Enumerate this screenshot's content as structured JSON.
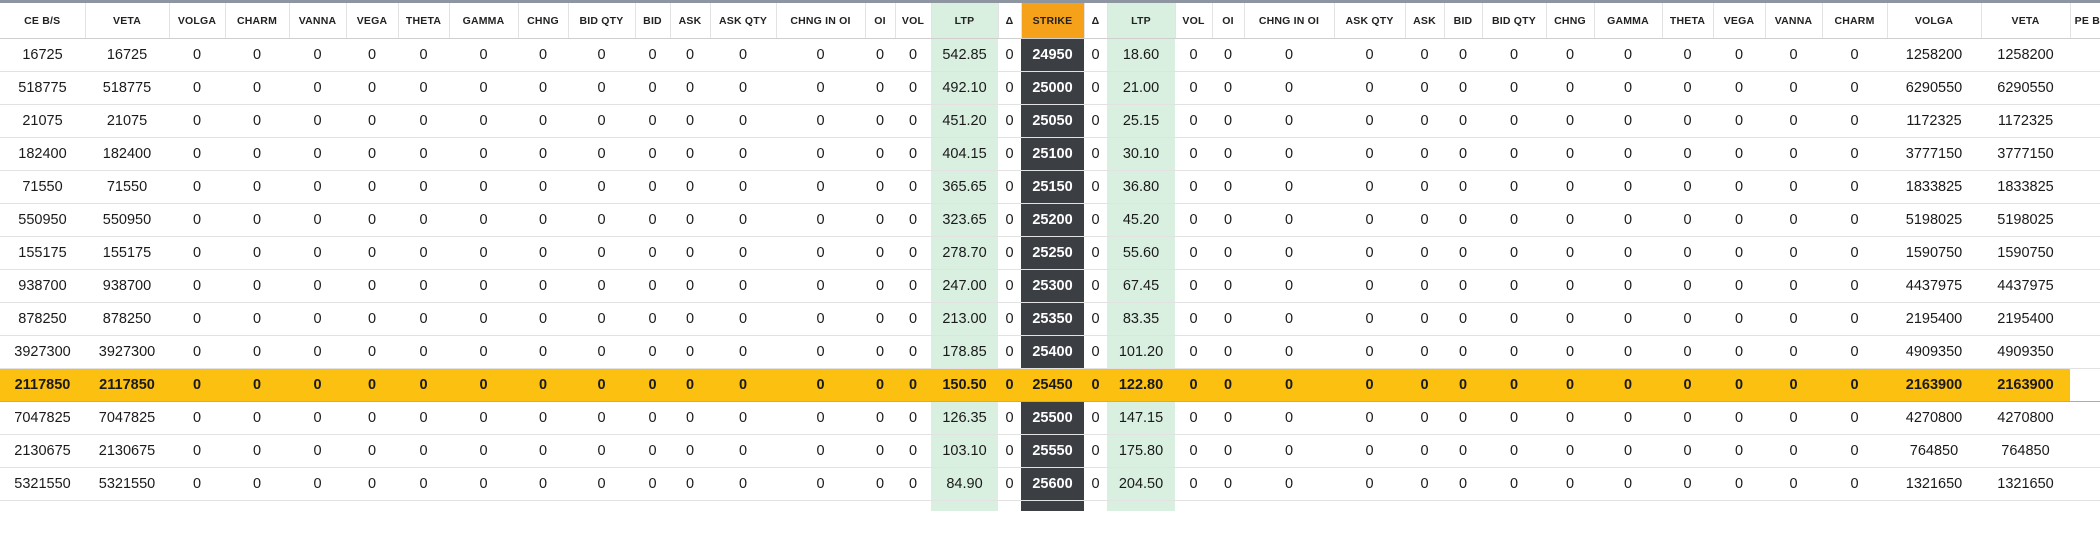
{
  "columns": [
    "CE B/S",
    "VETA",
    "VOLGA",
    "CHARM",
    "VANNA",
    "VEGA",
    "THETA",
    "GAMMA",
    "CHNG",
    "BID QTY",
    "BID",
    "ASK",
    "ASK QTY",
    "CHNG IN OI",
    "OI",
    "VOL",
    "LTP",
    "Δ",
    "STRIKE",
    "Δ",
    "LTP",
    "VOL",
    "OI",
    "CHNG IN OI",
    "ASK QTY",
    "ASK",
    "BID",
    "BID QTY",
    "CHNG",
    "GAMMA",
    "THETA",
    "VEGA",
    "VANNA",
    "CHARM",
    "VOLGA",
    "VETA",
    "PE B/S"
  ],
  "atm_strike": "25450",
  "rows": [
    [
      "16725",
      "16725",
      "0",
      "0",
      "0",
      "0",
      "0",
      "0",
      "0",
      "0",
      "0",
      "0",
      "0",
      "0",
      "0",
      "0",
      "542.85",
      "0",
      "24950",
      "0",
      "18.60",
      "0",
      "0",
      "0",
      "0",
      "0",
      "0",
      "0",
      "0",
      "0",
      "0",
      "0",
      "0",
      "0",
      "1258200",
      "1258200",
      ""
    ],
    [
      "518775",
      "518775",
      "0",
      "0",
      "0",
      "0",
      "0",
      "0",
      "0",
      "0",
      "0",
      "0",
      "0",
      "0",
      "0",
      "0",
      "492.10",
      "0",
      "25000",
      "0",
      "21.00",
      "0",
      "0",
      "0",
      "0",
      "0",
      "0",
      "0",
      "0",
      "0",
      "0",
      "0",
      "0",
      "0",
      "6290550",
      "6290550",
      ""
    ],
    [
      "21075",
      "21075",
      "0",
      "0",
      "0",
      "0",
      "0",
      "0",
      "0",
      "0",
      "0",
      "0",
      "0",
      "0",
      "0",
      "0",
      "451.20",
      "0",
      "25050",
      "0",
      "25.15",
      "0",
      "0",
      "0",
      "0",
      "0",
      "0",
      "0",
      "0",
      "0",
      "0",
      "0",
      "0",
      "0",
      "1172325",
      "1172325",
      ""
    ],
    [
      "182400",
      "182400",
      "0",
      "0",
      "0",
      "0",
      "0",
      "0",
      "0",
      "0",
      "0",
      "0",
      "0",
      "0",
      "0",
      "0",
      "404.15",
      "0",
      "25100",
      "0",
      "30.10",
      "0",
      "0",
      "0",
      "0",
      "0",
      "0",
      "0",
      "0",
      "0",
      "0",
      "0",
      "0",
      "0",
      "3777150",
      "3777150",
      ""
    ],
    [
      "71550",
      "71550",
      "0",
      "0",
      "0",
      "0",
      "0",
      "0",
      "0",
      "0",
      "0",
      "0",
      "0",
      "0",
      "0",
      "0",
      "365.65",
      "0",
      "25150",
      "0",
      "36.80",
      "0",
      "0",
      "0",
      "0",
      "0",
      "0",
      "0",
      "0",
      "0",
      "0",
      "0",
      "0",
      "0",
      "1833825",
      "1833825",
      ""
    ],
    [
      "550950",
      "550950",
      "0",
      "0",
      "0",
      "0",
      "0",
      "0",
      "0",
      "0",
      "0",
      "0",
      "0",
      "0",
      "0",
      "0",
      "323.65",
      "0",
      "25200",
      "0",
      "45.20",
      "0",
      "0",
      "0",
      "0",
      "0",
      "0",
      "0",
      "0",
      "0",
      "0",
      "0",
      "0",
      "0",
      "5198025",
      "5198025",
      ""
    ],
    [
      "155175",
      "155175",
      "0",
      "0",
      "0",
      "0",
      "0",
      "0",
      "0",
      "0",
      "0",
      "0",
      "0",
      "0",
      "0",
      "0",
      "278.70",
      "0",
      "25250",
      "0",
      "55.60",
      "0",
      "0",
      "0",
      "0",
      "0",
      "0",
      "0",
      "0",
      "0",
      "0",
      "0",
      "0",
      "0",
      "1590750",
      "1590750",
      ""
    ],
    [
      "938700",
      "938700",
      "0",
      "0",
      "0",
      "0",
      "0",
      "0",
      "0",
      "0",
      "0",
      "0",
      "0",
      "0",
      "0",
      "0",
      "247.00",
      "0",
      "25300",
      "0",
      "67.45",
      "0",
      "0",
      "0",
      "0",
      "0",
      "0",
      "0",
      "0",
      "0",
      "0",
      "0",
      "0",
      "0",
      "4437975",
      "4437975",
      ""
    ],
    [
      "878250",
      "878250",
      "0",
      "0",
      "0",
      "0",
      "0",
      "0",
      "0",
      "0",
      "0",
      "0",
      "0",
      "0",
      "0",
      "0",
      "213.00",
      "0",
      "25350",
      "0",
      "83.35",
      "0",
      "0",
      "0",
      "0",
      "0",
      "0",
      "0",
      "0",
      "0",
      "0",
      "0",
      "0",
      "0",
      "2195400",
      "2195400",
      ""
    ],
    [
      "3927300",
      "3927300",
      "0",
      "0",
      "0",
      "0",
      "0",
      "0",
      "0",
      "0",
      "0",
      "0",
      "0",
      "0",
      "0",
      "0",
      "178.85",
      "0",
      "25400",
      "0",
      "101.20",
      "0",
      "0",
      "0",
      "0",
      "0",
      "0",
      "0",
      "0",
      "0",
      "0",
      "0",
      "0",
      "0",
      "4909350",
      "4909350",
      ""
    ],
    [
      "2117850",
      "2117850",
      "0",
      "0",
      "0",
      "0",
      "0",
      "0",
      "0",
      "0",
      "0",
      "0",
      "0",
      "0",
      "0",
      "0",
      "150.50",
      "0",
      "25450",
      "0",
      "122.80",
      "0",
      "0",
      "0",
      "0",
      "0",
      "0",
      "0",
      "0",
      "0",
      "0",
      "0",
      "0",
      "0",
      "2163900",
      "2163900",
      ""
    ],
    [
      "7047825",
      "7047825",
      "0",
      "0",
      "0",
      "0",
      "0",
      "0",
      "0",
      "0",
      "0",
      "0",
      "0",
      "0",
      "0",
      "0",
      "126.35",
      "0",
      "25500",
      "0",
      "147.15",
      "0",
      "0",
      "0",
      "0",
      "0",
      "0",
      "0",
      "0",
      "0",
      "0",
      "0",
      "0",
      "0",
      "4270800",
      "4270800",
      ""
    ],
    [
      "2130675",
      "2130675",
      "0",
      "0",
      "0",
      "0",
      "0",
      "0",
      "0",
      "0",
      "0",
      "0",
      "0",
      "0",
      "0",
      "0",
      "103.10",
      "0",
      "25550",
      "0",
      "175.80",
      "0",
      "0",
      "0",
      "0",
      "0",
      "0",
      "0",
      "0",
      "0",
      "0",
      "0",
      "0",
      "0",
      "764850",
      "764850",
      ""
    ],
    [
      "5321550",
      "5321550",
      "0",
      "0",
      "0",
      "0",
      "0",
      "0",
      "0",
      "0",
      "0",
      "0",
      "0",
      "0",
      "0",
      "0",
      "84.90",
      "0",
      "25600",
      "0",
      "204.50",
      "0",
      "0",
      "0",
      "0",
      "0",
      "0",
      "0",
      "0",
      "0",
      "0",
      "0",
      "0",
      "0",
      "1321650",
      "1321650",
      ""
    ]
  ],
  "colors": {
    "ltp_bg": "#d9efe0",
    "strike_bg": "#3b3f44",
    "strike_header_bg": "#f5a21a",
    "atm_row_bg": "#fcc010"
  }
}
